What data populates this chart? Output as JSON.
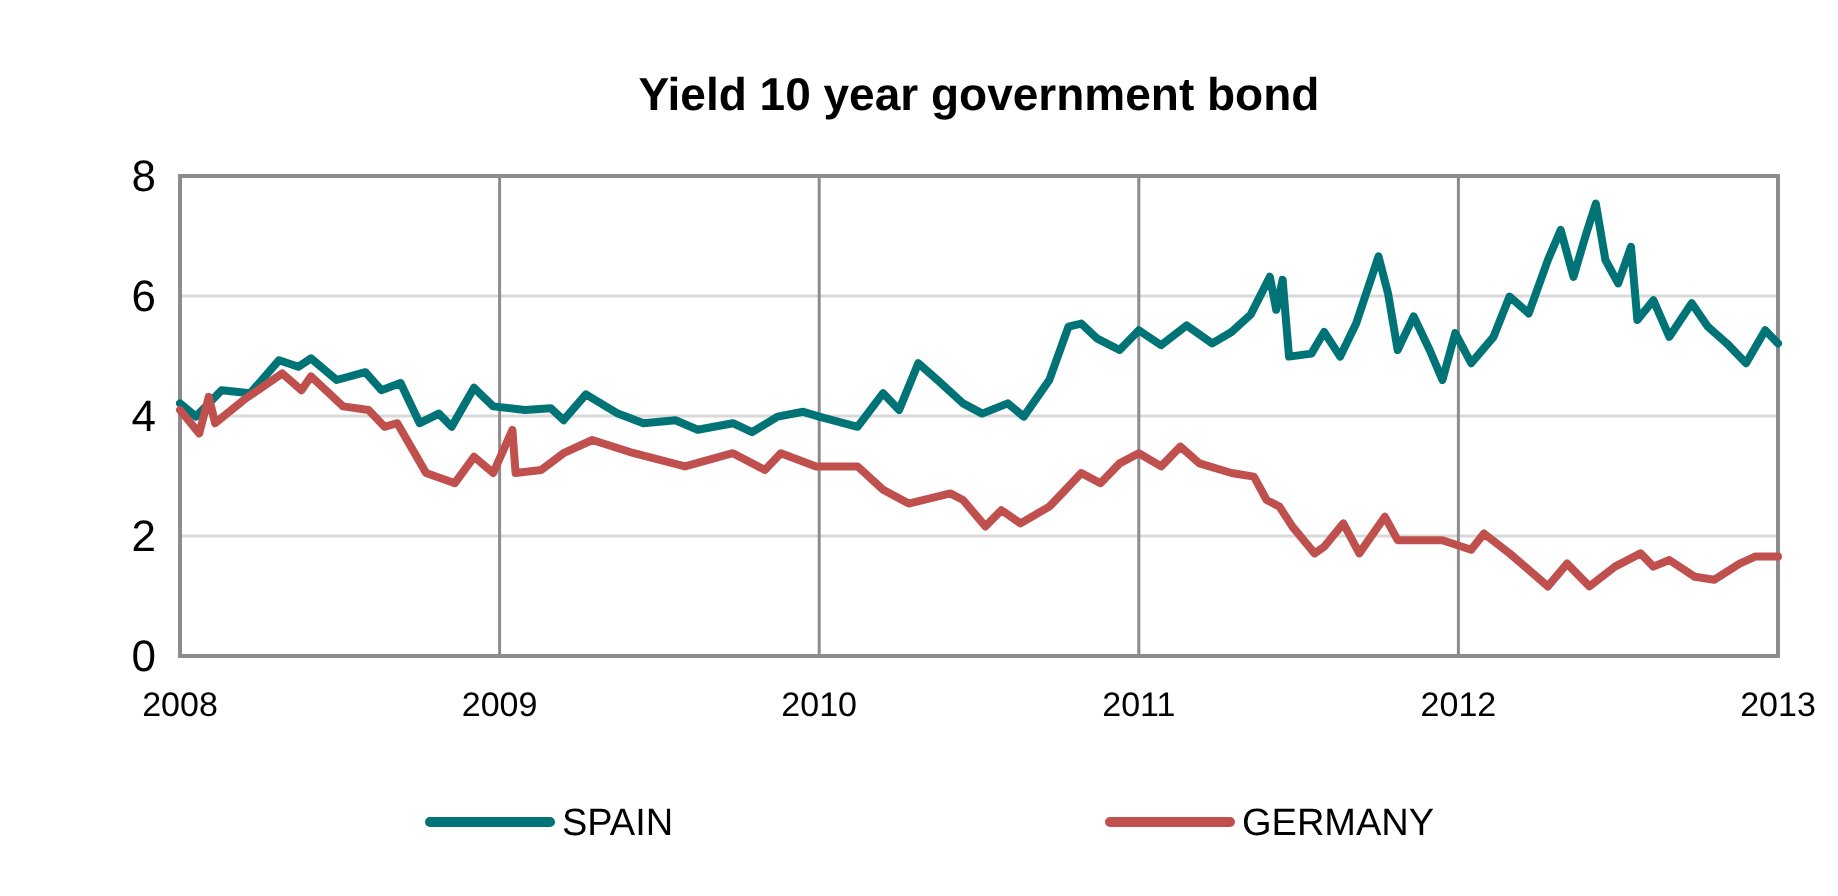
{
  "chart_data": {
    "type": "line",
    "title": "Yield 10 year government bond",
    "xlim": [
      2008,
      2013
    ],
    "xticks": [
      2008,
      2009,
      2010,
      2011,
      2012,
      2013
    ],
    "ylim": [
      0,
      8
    ],
    "yticks": [
      0,
      2,
      4,
      6,
      8
    ],
    "grid": true,
    "legend": "bottom",
    "series": [
      {
        "name": "SPAIN",
        "color": "#007377",
        "x": [
          2008.0,
          2008.05,
          2008.13,
          2008.22,
          2008.31,
          2008.37,
          2008.41,
          2008.49,
          2008.58,
          2008.63,
          2008.69,
          2008.75,
          2008.81,
          2008.85,
          2008.92,
          2008.98,
          2009.08,
          2009.16,
          2009.2,
          2009.27,
          2009.37,
          2009.45,
          2009.55,
          2009.62,
          2009.73,
          2009.79,
          2009.87,
          2009.95,
          2010.0,
          2010.12,
          2010.2,
          2010.25,
          2010.31,
          2010.37,
          2010.45,
          2010.51,
          2010.59,
          2010.64,
          2010.72,
          2010.78,
          2010.82,
          2010.87,
          2010.94,
          2011.0,
          2011.07,
          2011.15,
          2011.23,
          2011.29,
          2011.35,
          2011.41,
          2011.43,
          2011.45,
          2011.47,
          2011.54,
          2011.58,
          2011.63,
          2011.68,
          2011.75,
          2011.78,
          2011.81,
          2011.86,
          2011.91,
          2011.95,
          2011.99,
          2012.04,
          2012.11,
          2012.16,
          2012.22,
          2012.28,
          2012.32,
          2012.36,
          2012.4,
          2012.43,
          2012.46,
          2012.5,
          2012.54,
          2012.56,
          2012.61,
          2012.66,
          2012.73,
          2012.78,
          2012.84,
          2012.9,
          2012.96,
          2013.0
        ],
        "values": [
          4.21,
          3.99,
          4.43,
          4.38,
          4.93,
          4.82,
          4.96,
          4.6,
          4.73,
          4.43,
          4.55,
          3.88,
          4.04,
          3.82,
          4.47,
          4.16,
          4.1,
          4.13,
          3.93,
          4.36,
          4.04,
          3.88,
          3.93,
          3.77,
          3.88,
          3.73,
          3.99,
          4.07,
          3.99,
          3.82,
          4.38,
          4.1,
          4.88,
          4.6,
          4.21,
          4.04,
          4.21,
          3.99,
          4.6,
          5.49,
          5.54,
          5.29,
          5.1,
          5.43,
          5.18,
          5.51,
          5.21,
          5.4,
          5.69,
          6.32,
          5.77,
          6.27,
          4.99,
          5.04,
          5.4,
          4.99,
          5.54,
          6.66,
          6.04,
          5.1,
          5.66,
          5.1,
          4.6,
          5.38,
          4.88,
          5.32,
          5.99,
          5.71,
          6.6,
          7.1,
          6.32,
          7.04,
          7.54,
          6.6,
          6.21,
          6.82,
          5.6,
          5.93,
          5.32,
          5.88,
          5.49,
          5.21,
          4.88,
          5.43,
          5.21
        ]
      },
      {
        "name": "GERMANY",
        "color": "#c0504d",
        "x": [
          2008.0,
          2008.06,
          2008.09,
          2008.11,
          2008.2,
          2008.32,
          2008.38,
          2008.41,
          2008.51,
          2008.59,
          2008.64,
          2008.68,
          2008.77,
          2008.86,
          2008.92,
          2008.98,
          2009.04,
          2009.05,
          2009.13,
          2009.2,
          2009.29,
          2009.42,
          2009.58,
          2009.73,
          2009.83,
          2009.88,
          2009.99,
          2010.12,
          2010.2,
          2010.28,
          2010.41,
          2010.45,
          2010.52,
          2010.57,
          2010.63,
          2010.72,
          2010.76,
          2010.82,
          2010.88,
          2010.94,
          2011.0,
          2011.07,
          2011.13,
          2011.19,
          2011.29,
          2011.36,
          2011.4,
          2011.44,
          2011.48,
          2011.55,
          2011.58,
          2011.64,
          2011.69,
          2011.77,
          2011.81,
          2011.95,
          2012.04,
          2012.08,
          2012.16,
          2012.28,
          2012.34,
          2012.41,
          2012.49,
          2012.57,
          2012.61,
          2012.66,
          2012.74,
          2012.8,
          2012.88,
          2012.93,
          2013.0
        ],
        "values": [
          4.1,
          3.71,
          4.32,
          3.88,
          4.27,
          4.71,
          4.43,
          4.66,
          4.16,
          4.1,
          3.82,
          3.88,
          3.05,
          2.88,
          3.32,
          3.05,
          3.77,
          3.05,
          3.1,
          3.38,
          3.6,
          3.38,
          3.16,
          3.38,
          3.1,
          3.38,
          3.16,
          3.16,
          2.77,
          2.54,
          2.71,
          2.6,
          2.16,
          2.43,
          2.21,
          2.49,
          2.71,
          3.05,
          2.88,
          3.21,
          3.38,
          3.16,
          3.49,
          3.21,
          3.05,
          2.99,
          2.6,
          2.49,
          2.16,
          1.71,
          1.82,
          2.21,
          1.71,
          2.32,
          1.93,
          1.93,
          1.77,
          2.04,
          1.71,
          1.16,
          1.54,
          1.16,
          1.49,
          1.71,
          1.49,
          1.6,
          1.32,
          1.27,
          1.54,
          1.66,
          1.66
        ]
      }
    ]
  }
}
